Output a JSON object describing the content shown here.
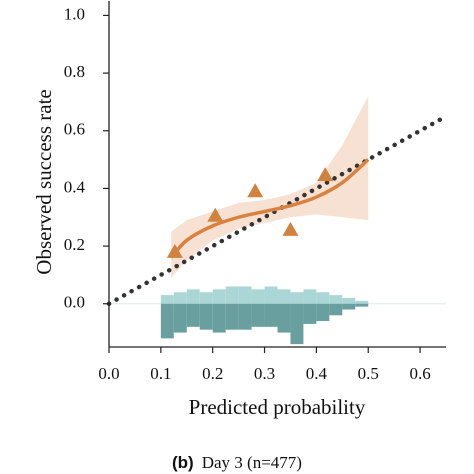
{
  "chart_data": {
    "type": "calibration",
    "xlabel": "Predicted probability",
    "ylabel": "Observed success rate",
    "xlim": [
      0,
      0.65
    ],
    "ylim": [
      -0.15,
      1.05
    ],
    "xticks": [
      {
        "value": 0,
        "label": "0.0"
      },
      {
        "value": 0.1,
        "label": "0.1"
      },
      {
        "value": 0.2,
        "label": "0.2"
      },
      {
        "value": 0.3,
        "label": "0.3"
      },
      {
        "value": 0.4,
        "label": "0.4"
      },
      {
        "value": 0.5,
        "label": "0.5"
      },
      {
        "value": 0.6,
        "label": "0.6"
      }
    ],
    "yticks": [
      {
        "value": 0,
        "label": "0.0"
      },
      {
        "value": 0.2,
        "label": "0.2"
      },
      {
        "value": 0.4,
        "label": "0.4"
      },
      {
        "value": 0.6,
        "label": "0.6"
      },
      {
        "value": 0.8,
        "label": "0.8"
      },
      {
        "value": 1,
        "label": "1.0"
      }
    ],
    "diagonal": true,
    "points": {
      "x": [
        0.127,
        0.205,
        0.282,
        0.35,
        0.417
      ],
      "y": [
        0.18,
        0.305,
        0.39,
        0.256,
        0.446
      ],
      "color": "#d2823f"
    },
    "fit": {
      "x": [
        0.12,
        0.15,
        0.2,
        0.25,
        0.3,
        0.35,
        0.4,
        0.45,
        0.5
      ],
      "y": [
        0.16,
        0.22,
        0.27,
        0.3,
        0.32,
        0.34,
        0.37,
        0.42,
        0.5
      ],
      "lower": [
        0.09,
        0.15,
        0.22,
        0.26,
        0.28,
        0.3,
        0.31,
        0.3,
        0.29
      ],
      "upper": [
        0.25,
        0.29,
        0.32,
        0.35,
        0.36,
        0.38,
        0.42,
        0.55,
        0.72
      ],
      "color": "#d9813e",
      "band_color": "#f6dccb"
    },
    "histogram": {
      "bins": [
        0.1,
        0.125,
        0.15,
        0.175,
        0.2,
        0.225,
        0.25,
        0.275,
        0.3,
        0.325,
        0.35,
        0.375,
        0.4,
        0.425,
        0.45,
        0.475,
        0.5
      ],
      "positive": [
        0.03,
        0.04,
        0.05,
        0.04,
        0.05,
        0.06,
        0.06,
        0.05,
        0.06,
        0.05,
        0.04,
        0.05,
        0.04,
        0.03,
        0.02,
        0.01
      ],
      "negative": [
        -0.12,
        -0.1,
        -0.08,
        -0.09,
        -0.1,
        -0.09,
        -0.09,
        -0.08,
        -0.08,
        -0.1,
        -0.14,
        -0.07,
        -0.06,
        -0.04,
        -0.02,
        -0.01
      ],
      "positive_color": "#abd6d6",
      "negative_color": "#6a9f9f"
    },
    "caption": {
      "label": "(b)",
      "text": "Day 3 (n=477)"
    }
  }
}
